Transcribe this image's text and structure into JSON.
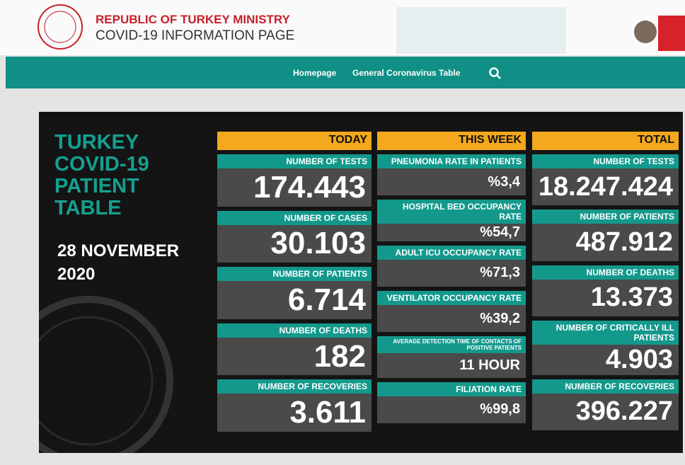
{
  "header": {
    "ministry": "REPUBLIC OF TURKEY MINISTRY",
    "page": "COVID-19 INFORMATION PAGE"
  },
  "nav": {
    "items": [
      "Homepage",
      "General Coronavirus Table"
    ]
  },
  "panel": {
    "title": [
      "TURKEY",
      "COVID-19",
      "PATIENT",
      "TABLE"
    ],
    "date": [
      "28 NOVEMBER",
      "2020"
    ],
    "columns": [
      {
        "heading": "TODAY",
        "items": [
          {
            "label": "NUMBER OF TESTS",
            "value": "174.443"
          },
          {
            "label": "NUMBER OF CASES",
            "value": "30.103"
          },
          {
            "label": "NUMBER OF PATIENTS",
            "value": "6.714"
          },
          {
            "label": "NUMBER OF DEATHS",
            "value": "182"
          },
          {
            "label": "NUMBER OF RECOVERIES",
            "value": "3.611"
          }
        ]
      },
      {
        "heading": "THIS WEEK",
        "items": [
          {
            "label": "PNEUMONIA RATE IN PATIENTS",
            "value": "%3,4"
          },
          {
            "label": "HOSPITAL BED OCCUPANCY RATE",
            "value": "%54,7"
          },
          {
            "label": "ADULT ICU OCCUPANCY RATE",
            "value": "%71,3"
          },
          {
            "label": "VENTILATOR OCCUPANCY RATE",
            "value": "%39,2"
          },
          {
            "label": "AVERAGE DETECTION TIME OF CONTACTS OF POSITIVE PATIENTS",
            "value": "11 HOUR"
          },
          {
            "label": "FILIATION RATE",
            "value": "%99,8"
          }
        ]
      },
      {
        "heading": "TOTAL",
        "items": [
          {
            "label": "NUMBER OF TESTS",
            "value": "18.247.424"
          },
          {
            "label": "NUMBER OF PATIENTS",
            "value": "487.912"
          },
          {
            "label": "NUMBER OF DEATHS",
            "value": "13.373"
          },
          {
            "label": "NUMBER OF CRITICALLY ILL PATIENTS",
            "value": "4.903"
          },
          {
            "label": "NUMBER OF RECOVERIES",
            "value": "396.227"
          }
        ]
      }
    ]
  }
}
